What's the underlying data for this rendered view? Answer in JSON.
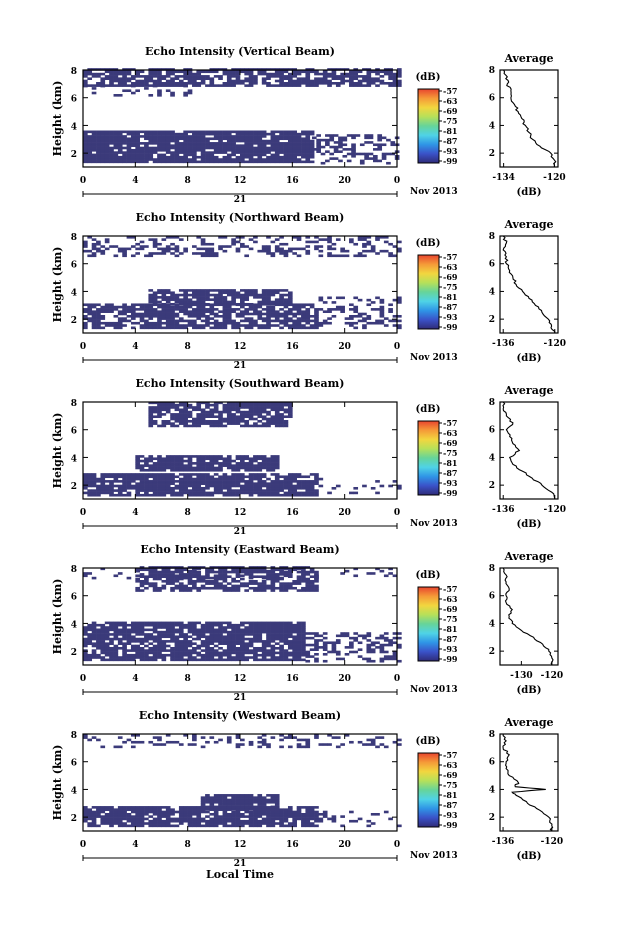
{
  "xlabel": "Local Time",
  "chart_data": [
    {
      "type": "heatmap",
      "title": "Echo Intensity (Vertical Beam)",
      "ylabel": "Height (km)",
      "xlim": [
        0,
        24
      ],
      "ylim": [
        1,
        8
      ],
      "x_ticks": [
        "0",
        "4",
        "8",
        "12",
        "16",
        "20",
        "0"
      ],
      "y_ticks": [
        "2",
        "4",
        "6",
        "8"
      ],
      "date_day": "21",
      "date_month": "Nov 2013",
      "colorbar": {
        "unit": "(dB)",
        "ticks": [
          "-57",
          "-63",
          "-69",
          "-75",
          "-81",
          "-87",
          "-93",
          "-99"
        ]
      },
      "bands": [
        {
          "x0": 0,
          "x1": 24,
          "y0": 6.8,
          "y1": 8.0,
          "density": 0.72
        },
        {
          "x0": 0,
          "x1": 8,
          "y0": 6.1,
          "y1": 6.8,
          "density": 0.25
        },
        {
          "x0": 0,
          "x1": 17.5,
          "y0": 1.3,
          "y1": 3.6,
          "density": 0.9
        },
        {
          "x0": 17.5,
          "x1": 24,
          "y0": 1.2,
          "y1": 3.2,
          "density": 0.35
        }
      ],
      "profile": {
        "title": "Average",
        "xlabel": "(dB)",
        "xlim": [
          -135,
          -119
        ],
        "ylim": [
          1,
          8
        ],
        "x_ticks": [
          "-134",
          "-120"
        ],
        "y_ticks": [
          "2",
          "4",
          "6",
          "8"
        ],
        "height": [
          1.0,
          1.5,
          2.0,
          2.5,
          3.0,
          3.5,
          4.0,
          4.5,
          5.0,
          5.5,
          6.0,
          6.5,
          7.0,
          7.5,
          8.0
        ],
        "db": [
          -120,
          -120,
          -121,
          -124,
          -126,
          -127,
          -128,
          -129,
          -130,
          -131,
          -132,
          -132,
          -133,
          -133,
          -134
        ]
      }
    },
    {
      "type": "heatmap",
      "title": "Echo Intensity (Northward Beam)",
      "ylabel": "Height (km)",
      "xlim": [
        0,
        24
      ],
      "ylim": [
        1,
        8
      ],
      "x_ticks": [
        "0",
        "4",
        "8",
        "12",
        "16",
        "20",
        "0"
      ],
      "y_ticks": [
        "2",
        "4",
        "6",
        "8"
      ],
      "date_day": "21",
      "date_month": "Nov 2013",
      "colorbar": {
        "unit": "(dB)",
        "ticks": [
          "-57",
          "-63",
          "-69",
          "-75",
          "-81",
          "-87",
          "-93",
          "-99"
        ]
      },
      "bands": [
        {
          "x0": 0,
          "x1": 24,
          "y0": 6.5,
          "y1": 8.0,
          "density": 0.35
        },
        {
          "x0": 5,
          "x1": 16,
          "y0": 3.0,
          "y1": 4.0,
          "density": 0.85
        },
        {
          "x0": 0,
          "x1": 18,
          "y0": 1.3,
          "y1": 3.0,
          "density": 0.75
        },
        {
          "x0": 18,
          "x1": 24,
          "y0": 1.3,
          "y1": 3.5,
          "density": 0.3
        }
      ],
      "profile": {
        "title": "Average",
        "xlabel": "(dB)",
        "xlim": [
          -137,
          -119
        ],
        "ylim": [
          1,
          8
        ],
        "x_ticks": [
          "-136",
          "-120"
        ],
        "y_ticks": [
          "2",
          "4",
          "6",
          "8"
        ],
        "height": [
          1.0,
          1.5,
          2.0,
          2.5,
          3.0,
          3.5,
          4.0,
          4.5,
          5.0,
          5.5,
          6.0,
          6.5,
          7.0,
          7.5,
          8.0
        ],
        "db": [
          -120,
          -121,
          -122,
          -124,
          -126,
          -128,
          -130,
          -132,
          -133,
          -134,
          -135,
          -135,
          -136,
          -135,
          -136
        ]
      }
    },
    {
      "type": "heatmap",
      "title": "Echo Intensity (Southward Beam)",
      "ylabel": "Height (km)",
      "xlim": [
        0,
        24
      ],
      "ylim": [
        1,
        8
      ],
      "x_ticks": [
        "0",
        "4",
        "8",
        "12",
        "16",
        "20",
        "0"
      ],
      "y_ticks": [
        "2",
        "4",
        "6",
        "8"
      ],
      "date_day": "21",
      "date_month": "Nov 2013",
      "colorbar": {
        "unit": "(dB)",
        "ticks": [
          "-57",
          "-63",
          "-69",
          "-75",
          "-81",
          "-87",
          "-93",
          "-99"
        ]
      },
      "bands": [
        {
          "x0": 5,
          "x1": 16,
          "y0": 6.2,
          "y1": 8.0,
          "density": 0.75
        },
        {
          "x0": 4,
          "x1": 15,
          "y0": 3.0,
          "y1": 4.0,
          "density": 0.85
        },
        {
          "x0": 0,
          "x1": 18,
          "y0": 1.2,
          "y1": 2.8,
          "density": 0.85
        },
        {
          "x0": 18,
          "x1": 24,
          "y0": 1.2,
          "y1": 2.4,
          "density": 0.1
        }
      ],
      "profile": {
        "title": "Average",
        "xlabel": "(dB)",
        "xlim": [
          -137,
          -119
        ],
        "ylim": [
          1,
          8
        ],
        "x_ticks": [
          "-136",
          "-120"
        ],
        "y_ticks": [
          "2",
          "4",
          "6",
          "8"
        ],
        "height": [
          1.0,
          1.5,
          2.0,
          2.5,
          3.0,
          3.5,
          4.0,
          4.5,
          5.0,
          5.5,
          6.0,
          6.5,
          7.0,
          7.5,
          8.0
        ],
        "db": [
          -120,
          -121,
          -124,
          -127,
          -130,
          -133,
          -134,
          -131,
          -133,
          -134,
          -135,
          -133,
          -135,
          -136,
          -136
        ]
      }
    },
    {
      "type": "heatmap",
      "title": "Echo Intensity (Eastward Beam)",
      "ylabel": "Height (km)",
      "xlim": [
        0,
        24
      ],
      "ylim": [
        1,
        8
      ],
      "x_ticks": [
        "0",
        "4",
        "8",
        "12",
        "16",
        "20",
        "0"
      ],
      "y_ticks": [
        "2",
        "4",
        "6",
        "8"
      ],
      "date_day": "21",
      "date_month": "Nov 2013",
      "colorbar": {
        "unit": "(dB)",
        "ticks": [
          "-57",
          "-63",
          "-69",
          "-75",
          "-81",
          "-87",
          "-93",
          "-99"
        ]
      },
      "bands": [
        {
          "x0": 4,
          "x1": 18,
          "y0": 6.3,
          "y1": 8.0,
          "density": 0.7
        },
        {
          "x0": 0,
          "x1": 24,
          "y0": 7.2,
          "y1": 8.0,
          "density": 0.15
        },
        {
          "x0": 0,
          "x1": 17,
          "y0": 1.3,
          "y1": 4.0,
          "density": 0.85
        },
        {
          "x0": 17,
          "x1": 24,
          "y0": 1.2,
          "y1": 3.2,
          "density": 0.35
        }
      ],
      "profile": {
        "title": "Average",
        "xlabel": "(dB)",
        "xlim": [
          -137,
          -118
        ],
        "ylim": [
          1,
          8
        ],
        "x_ticks": [
          "-130",
          "-120"
        ],
        "y_ticks": [
          "2",
          "4",
          "6",
          "8"
        ],
        "height": [
          1.0,
          1.5,
          2.0,
          2.5,
          3.0,
          3.5,
          4.0,
          4.5,
          5.0,
          5.5,
          6.0,
          6.5,
          7.0,
          7.5,
          8.0
        ],
        "db": [
          -120,
          -120,
          -121,
          -123,
          -126,
          -130,
          -133,
          -134,
          -133,
          -135,
          -135,
          -134,
          -135,
          -135,
          -136
        ]
      }
    },
    {
      "type": "heatmap",
      "title": "Echo Intensity (Westward Beam)",
      "ylabel": "Height (km)",
      "xlim": [
        0,
        24
      ],
      "ylim": [
        1,
        8
      ],
      "x_ticks": [
        "0",
        "4",
        "8",
        "12",
        "16",
        "20",
        "0"
      ],
      "y_ticks": [
        "2",
        "4",
        "6",
        "8"
      ],
      "date_day": "21",
      "date_month": "Nov 2013",
      "colorbar": {
        "unit": "(dB)",
        "ticks": [
          "-57",
          "-63",
          "-69",
          "-75",
          "-81",
          "-87",
          "-93",
          "-99"
        ]
      },
      "bands": [
        {
          "x0": 0,
          "x1": 24,
          "y0": 7.0,
          "y1": 8.0,
          "density": 0.25
        },
        {
          "x0": 9,
          "x1": 15,
          "y0": 2.5,
          "y1": 3.5,
          "density": 0.85
        },
        {
          "x0": 0,
          "x1": 18,
          "y0": 1.3,
          "y1": 2.8,
          "density": 0.85
        },
        {
          "x0": 18,
          "x1": 24,
          "y0": 1.3,
          "y1": 2.4,
          "density": 0.25
        }
      ],
      "profile": {
        "title": "Average",
        "xlabel": "(dB)",
        "xlim": [
          -137,
          -118
        ],
        "ylim": [
          1,
          8
        ],
        "x_ticks": [
          "-136",
          "-120"
        ],
        "y_ticks": [
          "2",
          "4",
          "6",
          "8"
        ],
        "height": [
          1.0,
          1.5,
          2.0,
          2.5,
          3.0,
          3.5,
          3.8,
          4.0,
          4.2,
          4.5,
          5.0,
          5.5,
          6.0,
          6.5,
          7.0,
          7.5,
          8.0
        ],
        "db": [
          -120,
          -120,
          -121,
          -124,
          -128,
          -131,
          -133,
          -122,
          -132,
          -131,
          -134,
          -135,
          -135,
          -134,
          -136,
          -135,
          -136
        ]
      }
    }
  ],
  "colors": {
    "echo_fill": "#3b3a7a",
    "colorscale": [
      "#2f2b78",
      "#3a52c8",
      "#2f95e6",
      "#4fd3e6",
      "#66d49a",
      "#b6e05a",
      "#f2d63f",
      "#f59a38",
      "#e8452e"
    ]
  }
}
